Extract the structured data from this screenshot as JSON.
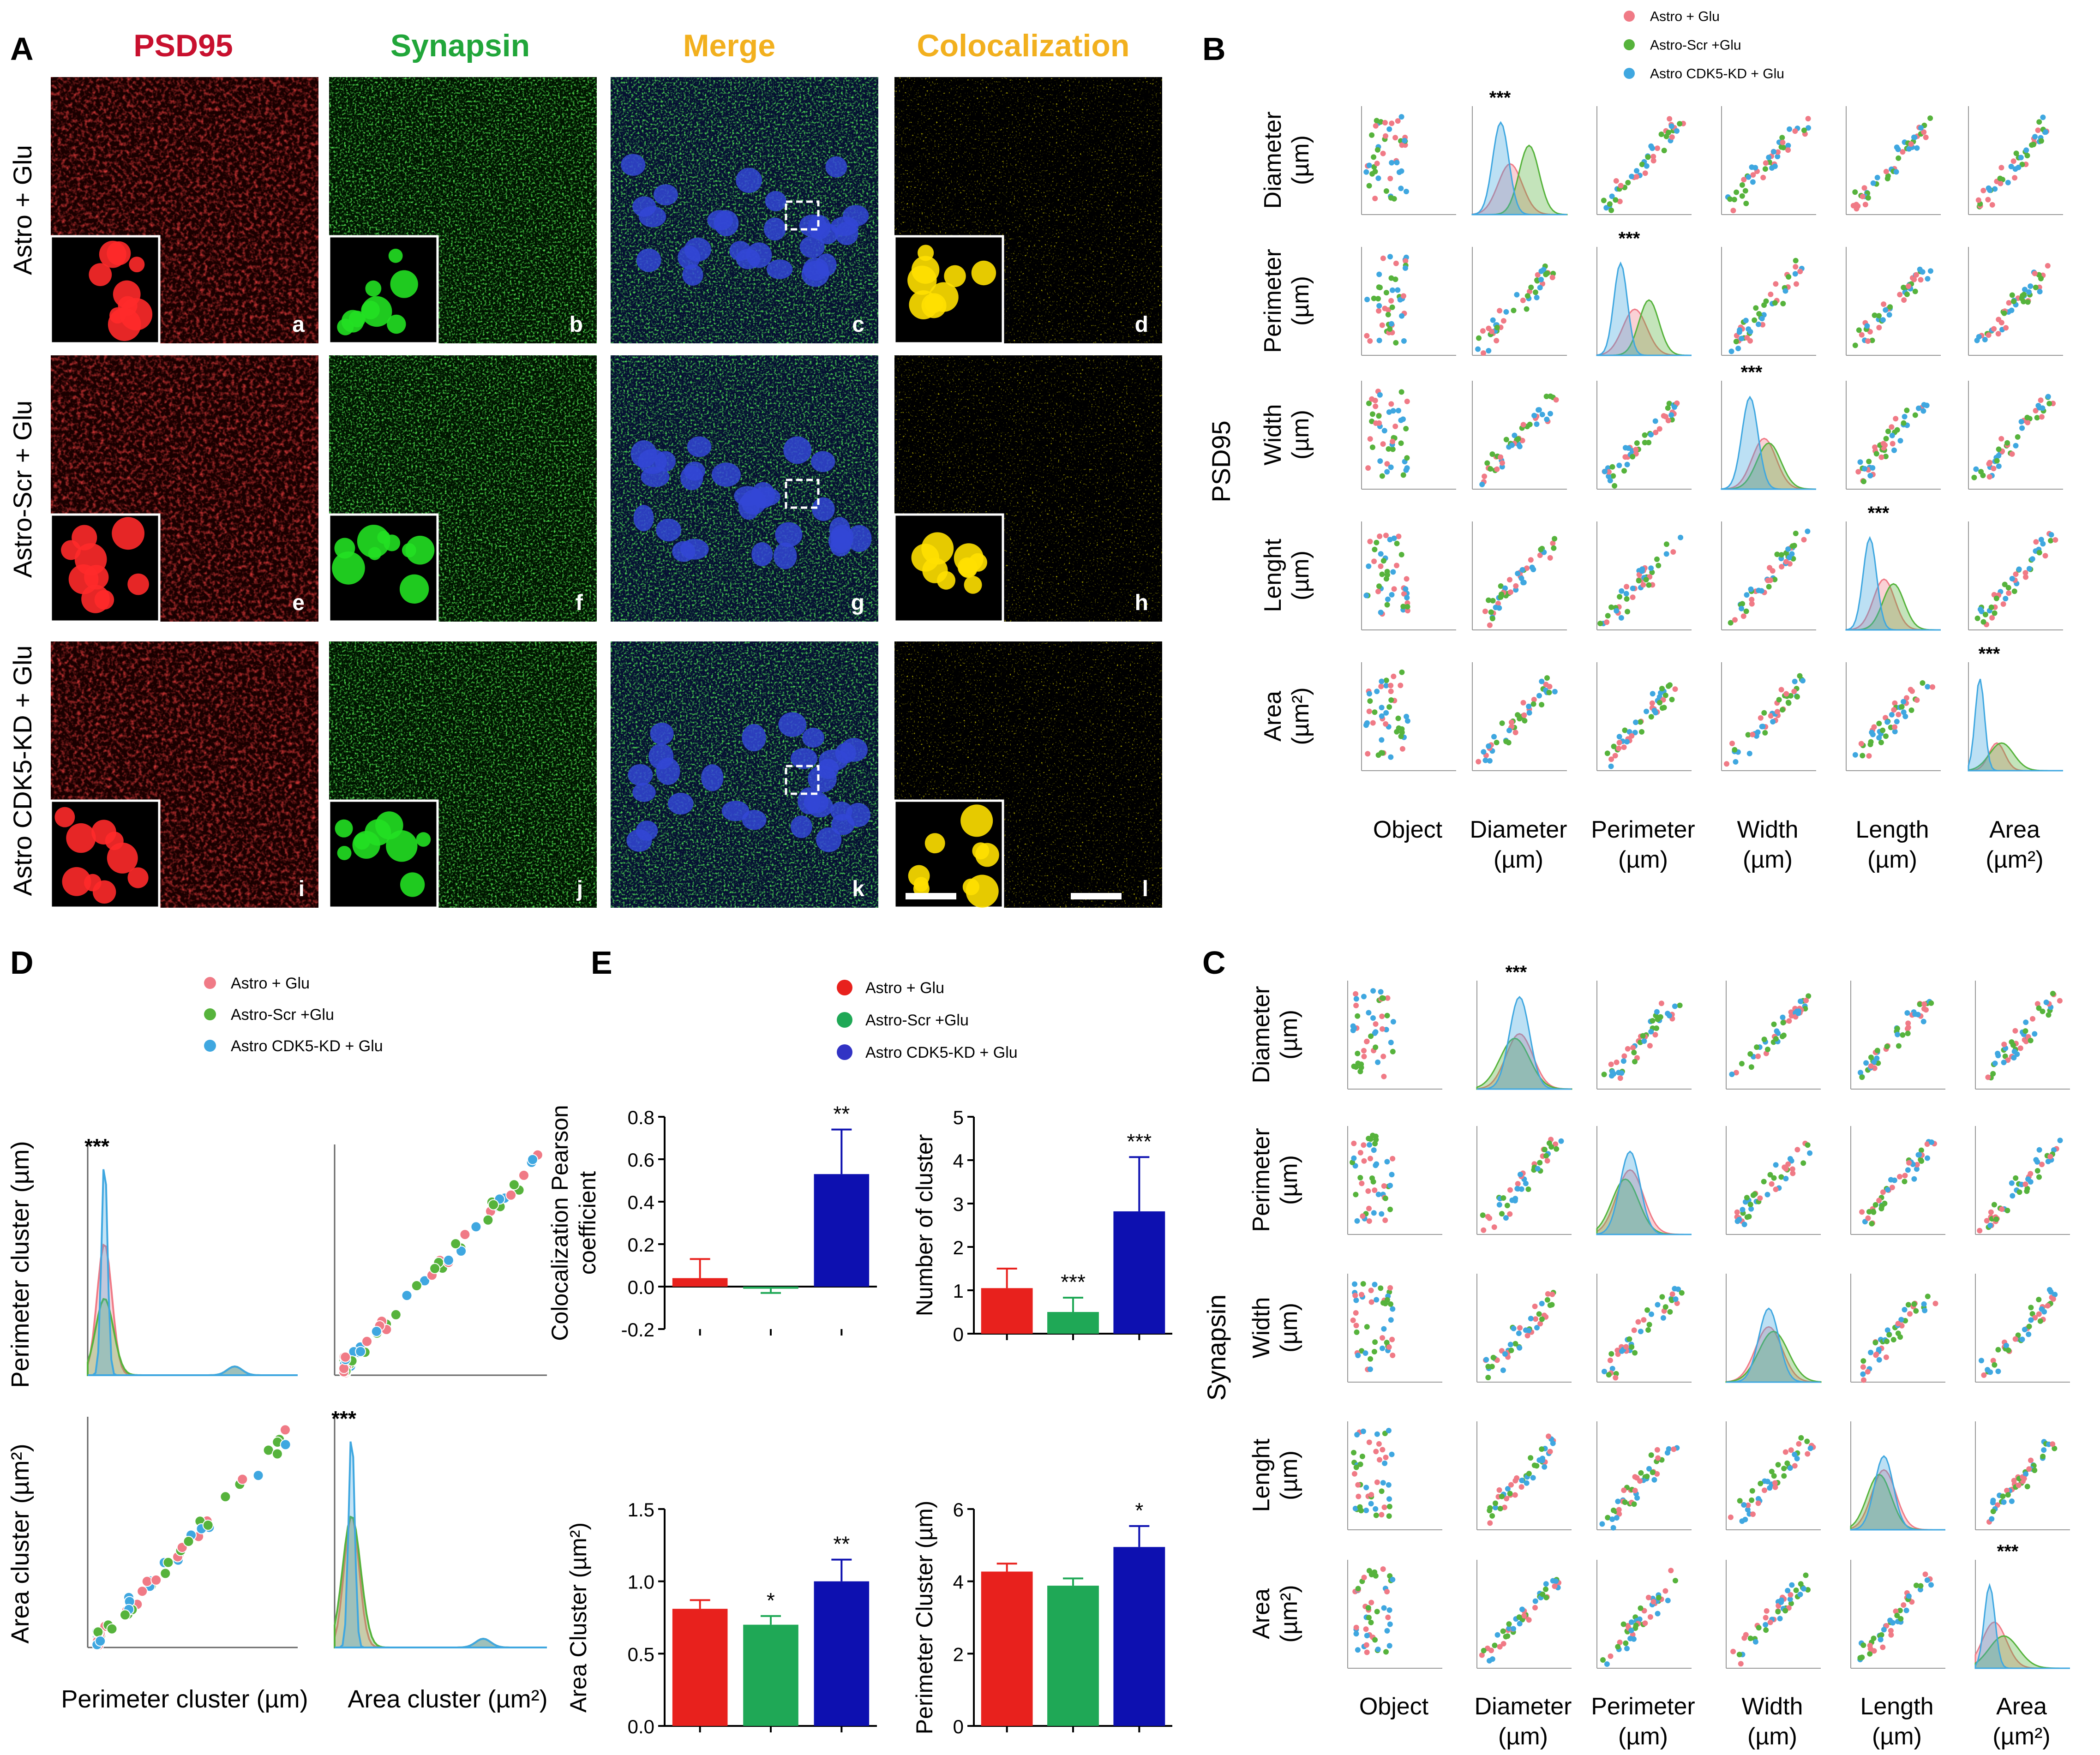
{
  "panelA": {
    "letter": "A",
    "columns": [
      {
        "label": "PSD95",
        "color": "#c8102e"
      },
      {
        "label": "Synapsin",
        "color": "#21a63a"
      },
      {
        "label": "Merge",
        "color": "#f2b01e"
      },
      {
        "label": "Colocalization",
        "color": "#f2b01e"
      }
    ],
    "rows": [
      "Astro + Glu",
      "Astro-Scr + Glu",
      "Astro CDK5-KD + Glu"
    ],
    "tile_letters": [
      [
        "a",
        "b",
        "c",
        "d"
      ],
      [
        "e",
        "f",
        "g",
        "h"
      ],
      [
        "i",
        "j",
        "k",
        "l"
      ]
    ]
  },
  "panelB": {
    "letter": "B",
    "ylabel": "PSD95",
    "legend": [
      {
        "label": "Astro + Glu",
        "color": "#f07a86"
      },
      {
        "label": "Astro-Scr +Glu",
        "color": "#56b33c"
      },
      {
        "label": "Astro CDK5-KD + Glu",
        "color": "#3fa7e0"
      }
    ],
    "row_labels": [
      [
        "Diameter",
        "(µm)"
      ],
      [
        "Perimeter",
        "(µm)"
      ],
      [
        "Width",
        "(µm)"
      ],
      [
        "Lenght",
        "(µm)"
      ],
      [
        "Area",
        "(µm²)"
      ]
    ],
    "col_labels": [
      [
        "Object",
        ""
      ],
      [
        "Diameter",
        "(µm)"
      ],
      [
        "Perimeter",
        "(µm)"
      ],
      [
        "Width",
        "(µm)"
      ],
      [
        "Length",
        "(µm)"
      ],
      [
        "Area",
        "(µm²)"
      ]
    ],
    "star": "***"
  },
  "panelC": {
    "letter": "C",
    "ylabel": "Synapsin",
    "row_labels": [
      [
        "Diameter",
        "(µm)"
      ],
      [
        "Perimeter",
        "(µm)"
      ],
      [
        "Width",
        "(µm)"
      ],
      [
        "Lenght",
        "(µm)"
      ],
      [
        "Area",
        "(µm²)"
      ]
    ],
    "col_labels": [
      [
        "Object",
        ""
      ],
      [
        "Diameter",
        "(µm)"
      ],
      [
        "Perimeter",
        "(µm)"
      ],
      [
        "Width",
        "(µm)"
      ],
      [
        "Length",
        "(µm)"
      ],
      [
        "Area",
        "(µm²)"
      ]
    ],
    "star": "***"
  },
  "panelD": {
    "letter": "D",
    "legend": [
      {
        "label": "Astro + Glu",
        "color": "#f07a86"
      },
      {
        "label": "Astro-Scr +Glu",
        "color": "#56b33c"
      },
      {
        "label": "Astro CDK5-KD + Glu",
        "color": "#3fa7e0"
      }
    ],
    "ylabel_top": "Perimeter cluster  (µm)",
    "ylabel_bottom": "Area cluster  (µm²)",
    "xlabel_left": "Perimeter cluster (µm)",
    "xlabel_right": "Area cluster  (µm²)",
    "star": "***"
  },
  "panelE": {
    "letter": "E",
    "legend": [
      {
        "label": "Astro + Glu",
        "color": "#e8211d"
      },
      {
        "label": "Astro-Scr +Glu",
        "color": "#1fa856"
      },
      {
        "label": "Astro CDK5-KD + Glu",
        "color": "#3233c4"
      }
    ]
  },
  "chart_data": [
    {
      "type": "bar",
      "ylabel": "Colocalization Pearson coefficient",
      "categories": [
        "Astro + Glu",
        "Astro-Scr +Glu",
        "Astro CDK5-KD + Glu"
      ],
      "values": [
        0.04,
        -0.01,
        0.53
      ],
      "errors": [
        0.09,
        0.02,
        0.21
      ],
      "significance": [
        "",
        "",
        "**"
      ],
      "ylim": [
        -0.2,
        0.8
      ],
      "yticks": [
        "-0.2",
        "0.0",
        "0.2",
        "0.4",
        "0.6",
        "0.8"
      ],
      "colors": [
        "#e8211d",
        "#1fa856",
        "#0d10b0"
      ]
    },
    {
      "type": "bar",
      "ylabel": "Number of cluster",
      "categories": [
        "Astro + Glu",
        "Astro-Scr +Glu",
        "Astro CDK5-KD + Glu"
      ],
      "values": [
        1.05,
        0.5,
        2.82
      ],
      "errors": [
        0.45,
        0.33,
        1.25
      ],
      "significance": [
        "",
        "***",
        "***"
      ],
      "ylim": [
        0,
        5
      ],
      "yticks": [
        "0",
        "1",
        "2",
        "3",
        "4",
        "5"
      ],
      "colors": [
        "#e8211d",
        "#1fa856",
        "#0d10b0"
      ]
    },
    {
      "type": "bar",
      "ylabel": "Area Cluster (µm²)",
      "categories": [
        "Astro + Glu",
        "Astro-Scr +Glu",
        "Astro CDK5-KD + Glu"
      ],
      "values": [
        0.81,
        0.7,
        1.0
      ],
      "errors": [
        0.06,
        0.06,
        0.15
      ],
      "significance": [
        "",
        "*",
        "**"
      ],
      "ylim": [
        0,
        1.5
      ],
      "yticks": [
        "0.0",
        "0.5",
        "1.0",
        "1.5"
      ],
      "colors": [
        "#e8211d",
        "#1fa856",
        "#0d10b0"
      ]
    },
    {
      "type": "bar",
      "ylabel": "Perimeter Cluster (µm)",
      "categories": [
        "Astro + Glu",
        "Astro-Scr +Glu",
        "Astro CDK5-KD + Glu"
      ],
      "values": [
        4.27,
        3.88,
        4.95
      ],
      "errors": [
        0.22,
        0.2,
        0.58
      ],
      "significance": [
        "",
        "",
        "*"
      ],
      "ylim": [
        0,
        6
      ],
      "yticks": [
        "0",
        "2",
        "4",
        "6"
      ],
      "colors": [
        "#e8211d",
        "#1fa856",
        "#0d10b0"
      ]
    }
  ]
}
